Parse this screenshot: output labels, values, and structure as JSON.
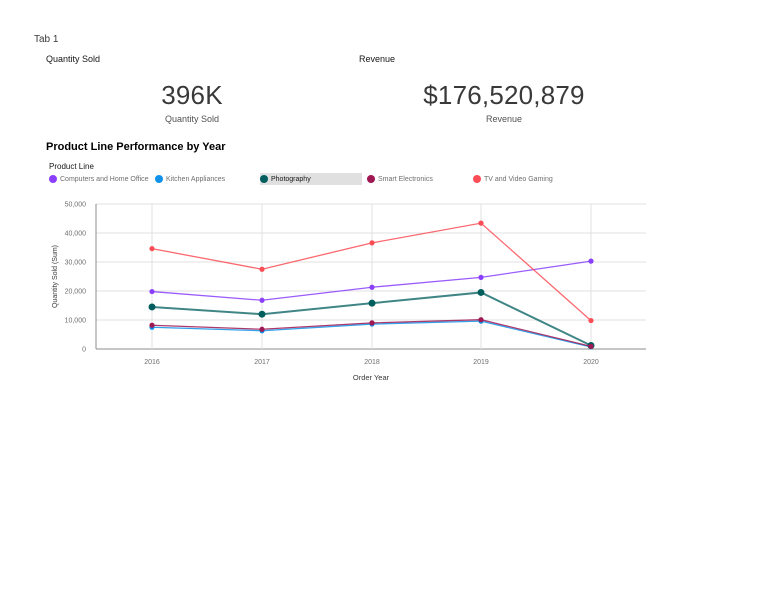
{
  "tab": "Tab 1",
  "kpi": {
    "quantity": {
      "title": "Quantity Sold",
      "value": "396K",
      "label": "Quantity Sold"
    },
    "revenue": {
      "title": "Revenue",
      "value": "$176,520,879",
      "label": "Revenue"
    }
  },
  "chart_title": "Product Line Performance by Year",
  "legend_title": "Product Line",
  "chart_data": {
    "type": "line",
    "title": "Product Line Performance by Year",
    "xlabel": "Order Year",
    "ylabel": "Quantity Sold (Sum)",
    "x": [
      "2016",
      "2017",
      "2018",
      "2019",
      "2020"
    ],
    "ylim": [
      0,
      50000
    ],
    "yticks": [
      "0",
      "10,000",
      "20,000",
      "30,000",
      "40,000",
      "50,000"
    ],
    "grid": true,
    "legend_position": "top-left",
    "highlighted_series": "Photography",
    "series": [
      {
        "name": "Computers and Home Office",
        "color": "#8a3ffc",
        "values": [
          19800,
          16800,
          21300,
          24700,
          30300
        ]
      },
      {
        "name": "Kitchen Appliances",
        "color": "#1192e8",
        "values": [
          7500,
          6300,
          8600,
          9600,
          700
        ]
      },
      {
        "name": "Photography",
        "color": "#005d5d",
        "values": [
          14500,
          12000,
          15800,
          19500,
          1200
        ]
      },
      {
        "name": "Smart Electronics",
        "color": "#9f1853",
        "values": [
          8200,
          6800,
          9000,
          10100,
          900
        ]
      },
      {
        "name": "TV and Video Gaming",
        "color": "#fa4d56",
        "values": [
          34600,
          27500,
          36600,
          43400,
          9800
        ]
      }
    ]
  }
}
